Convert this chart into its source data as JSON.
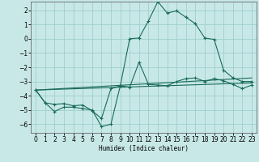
{
  "xlabel": "Humidex (Indice chaleur)",
  "xlim": [
    -0.5,
    23.5
  ],
  "ylim": [
    -6.6,
    2.6
  ],
  "xticks": [
    0,
    1,
    2,
    3,
    4,
    5,
    6,
    7,
    8,
    9,
    10,
    11,
    12,
    13,
    14,
    15,
    16,
    17,
    18,
    19,
    20,
    21,
    22,
    23
  ],
  "yticks": [
    -6,
    -5,
    -4,
    -3,
    -2,
    -1,
    0,
    1,
    2
  ],
  "background_color": "#c8e8e8",
  "grid_color": "#9ecece",
  "line_color": "#1a6b5a",
  "line1_x": [
    0,
    1,
    2,
    3,
    4,
    5,
    6,
    7,
    8,
    9,
    10,
    11,
    12,
    13,
    14,
    15,
    16,
    17,
    18,
    19,
    20,
    21,
    22,
    23
  ],
  "line1_y": [
    -3.6,
    -4.5,
    -4.6,
    -4.55,
    -4.7,
    -4.65,
    -5.05,
    -5.6,
    -3.5,
    -3.3,
    0.0,
    0.05,
    1.25,
    2.6,
    1.8,
    1.95,
    1.5,
    1.05,
    0.05,
    -0.05,
    -2.2,
    -2.75,
    -3.0,
    -3.0
  ],
  "line2_x": [
    0,
    1,
    2,
    3,
    4,
    5,
    6,
    7,
    8,
    9,
    10,
    11,
    12,
    13,
    14,
    15,
    16,
    17,
    18,
    19,
    20,
    21,
    22,
    23
  ],
  "line2_y": [
    -3.6,
    -4.5,
    -5.1,
    -4.8,
    -4.8,
    -4.9,
    -5.0,
    -6.15,
    -6.0,
    -3.3,
    -3.4,
    -1.65,
    -3.2,
    -3.25,
    -3.3,
    -3.0,
    -2.8,
    -2.75,
    -3.0,
    -2.8,
    -2.95,
    -3.2,
    -3.5,
    -3.25
  ],
  "line3_x": [
    0,
    23
  ],
  "line3_y": [
    -3.6,
    -2.75
  ],
  "line4_x": [
    0,
    23
  ],
  "line4_y": [
    -3.6,
    -3.1
  ]
}
